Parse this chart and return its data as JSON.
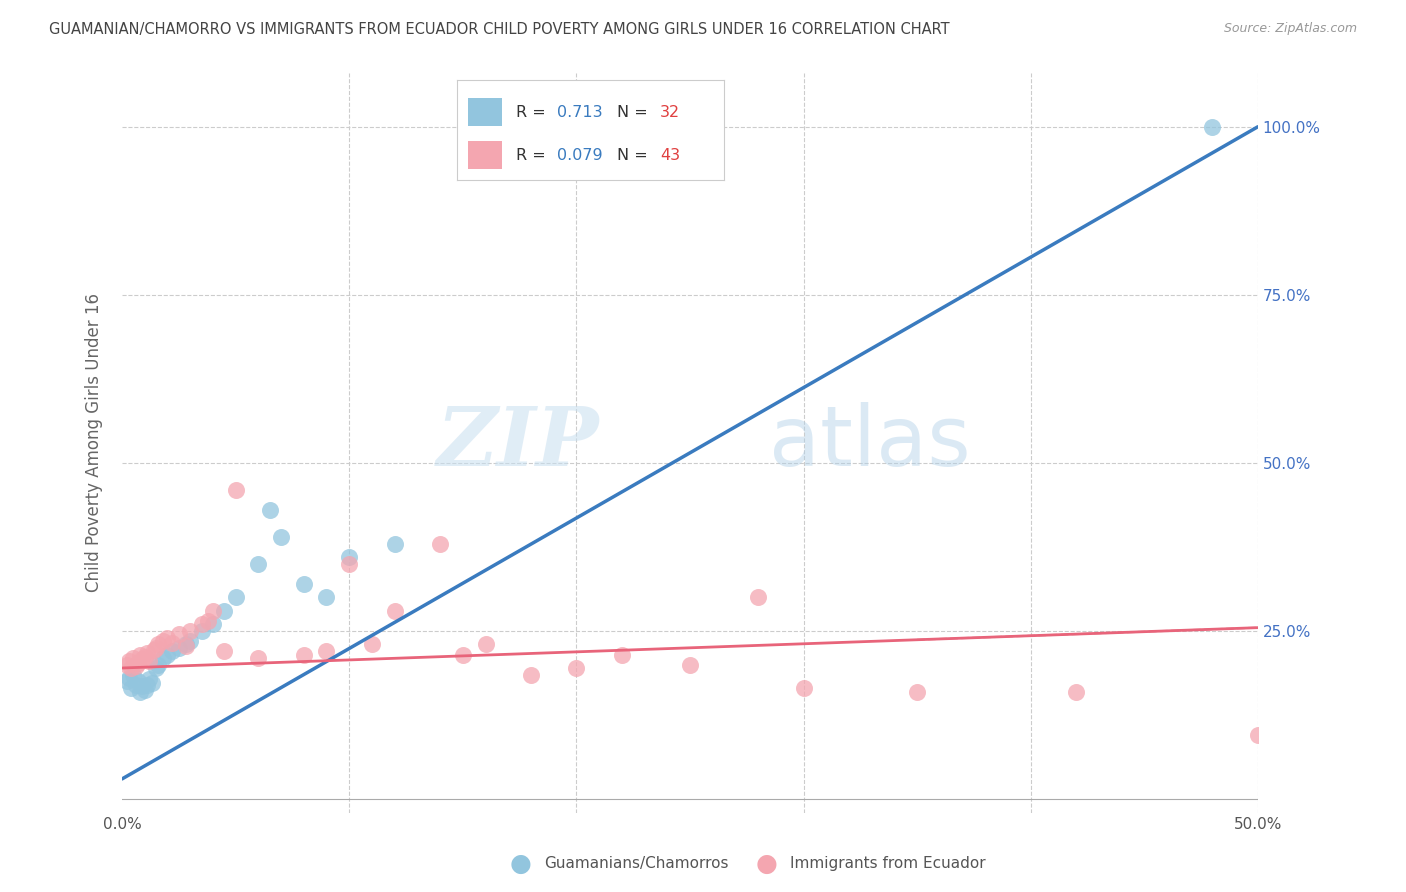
{
  "title": "GUAMANIAN/CHAMORRO VS IMMIGRANTS FROM ECUADOR CHILD POVERTY AMONG GIRLS UNDER 16 CORRELATION CHART",
  "source": "Source: ZipAtlas.com",
  "ylabel": "Child Poverty Among Girls Under 16",
  "xlim": [
    0.0,
    0.5
  ],
  "ylim": [
    -0.02,
    1.08
  ],
  "blue_color": "#92c5de",
  "pink_color": "#f4a6b0",
  "blue_line_color": "#3a7bbf",
  "pink_line_color": "#e8647a",
  "R_blue": "0.713",
  "N_blue": "32",
  "R_pink": "0.079",
  "N_pink": "43",
  "legend_label_blue": "Guamanians/Chamorros",
  "legend_label_pink": "Immigrants from Ecuador",
  "watermark_zip": "ZIP",
  "watermark_atlas": "atlas",
  "grid_color": "#cccccc",
  "background_color": "#ffffff",
  "title_color": "#444444",
  "axis_label_color": "#666666",
  "right_tick_color": "#4472c4",
  "blue_scatter_x": [
    0.002,
    0.003,
    0.004,
    0.005,
    0.006,
    0.007,
    0.008,
    0.009,
    0.01,
    0.011,
    0.012,
    0.013,
    0.015,
    0.016,
    0.018,
    0.02,
    0.022,
    0.025,
    0.028,
    0.03,
    0.035,
    0.04,
    0.045,
    0.05,
    0.06,
    0.065,
    0.07,
    0.08,
    0.09,
    0.1,
    0.12,
    0.48
  ],
  "blue_scatter_y": [
    0.175,
    0.18,
    0.165,
    0.185,
    0.17,
    0.175,
    0.16,
    0.168,
    0.162,
    0.17,
    0.178,
    0.172,
    0.195,
    0.2,
    0.21,
    0.215,
    0.22,
    0.225,
    0.23,
    0.235,
    0.25,
    0.26,
    0.28,
    0.3,
    0.35,
    0.43,
    0.39,
    0.32,
    0.3,
    0.36,
    0.38,
    1.0
  ],
  "pink_scatter_x": [
    0.002,
    0.003,
    0.004,
    0.005,
    0.006,
    0.007,
    0.008,
    0.009,
    0.01,
    0.011,
    0.012,
    0.014,
    0.015,
    0.016,
    0.018,
    0.02,
    0.022,
    0.025,
    0.028,
    0.03,
    0.035,
    0.038,
    0.04,
    0.045,
    0.05,
    0.06,
    0.08,
    0.09,
    0.1,
    0.11,
    0.12,
    0.14,
    0.15,
    0.16,
    0.18,
    0.2,
    0.22,
    0.25,
    0.28,
    0.3,
    0.35,
    0.42,
    0.5
  ],
  "pink_scatter_y": [
    0.2,
    0.205,
    0.195,
    0.21,
    0.198,
    0.202,
    0.215,
    0.208,
    0.212,
    0.218,
    0.205,
    0.222,
    0.225,
    0.23,
    0.235,
    0.24,
    0.232,
    0.245,
    0.228,
    0.25,
    0.26,
    0.265,
    0.28,
    0.22,
    0.46,
    0.21,
    0.215,
    0.22,
    0.35,
    0.23,
    0.28,
    0.38,
    0.215,
    0.23,
    0.185,
    0.195,
    0.215,
    0.2,
    0.3,
    0.165,
    0.16,
    0.16,
    0.095
  ]
}
